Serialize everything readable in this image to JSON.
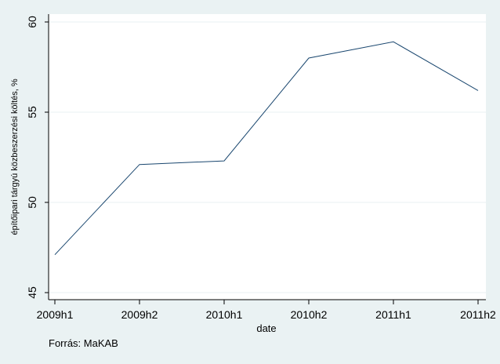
{
  "chart_data": {
    "type": "line",
    "title": "",
    "xlabel": "date",
    "ylabel": "építőipari tárgyú közbeszerzési költés, %",
    "note": "Forrás: MaKAB",
    "categories": [
      "2009h1",
      "2009h2",
      "2010h1",
      "2010h2",
      "2011h1",
      "2011h2"
    ],
    "series": [
      {
        "values": [
          47.1,
          52.1,
          52.3,
          58.0,
          58.9,
          56.2
        ]
      }
    ],
    "ylim": [
      45,
      60
    ],
    "yticks": [
      45,
      50,
      55,
      60
    ],
    "grid": true,
    "colors": {
      "background": "#eaf2f3",
      "plot_bg": "#ffffff",
      "line": "#1a476f",
      "grid": "#eaf2f3"
    }
  }
}
